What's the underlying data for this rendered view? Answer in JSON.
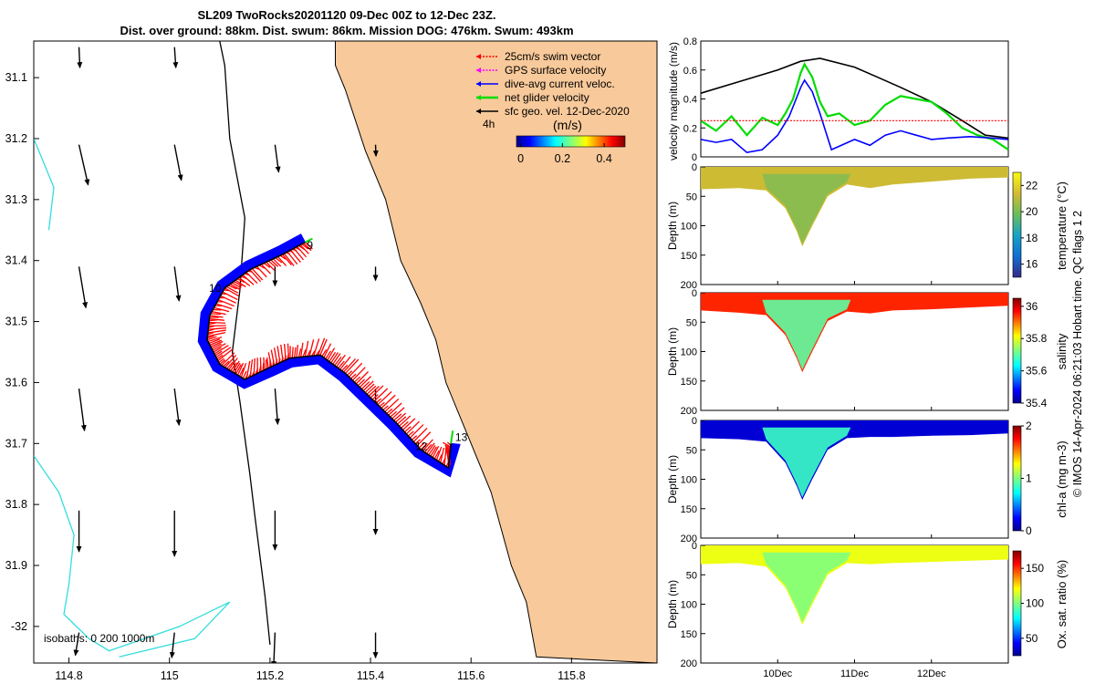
{
  "title": {
    "line1": "SL209 TwoRocks20201120 09-Dec 00Z to 12-Dec 23Z.",
    "line2": "Dist. over ground: 88km. Dist. swum: 86km. Mission DOG: 476km. Swum: 493km"
  },
  "footer": "© IMOS 14-Apr-2024 06:21:03 Hobart time. QC flags 1  2",
  "colors": {
    "land": "#f8c99a",
    "swim": "#ff0000",
    "gps": "#ff00ff",
    "current": "#0000ff",
    "net": "#00dd00",
    "isobath": "#33dddd"
  },
  "chart_data": [
    {
      "type": "map",
      "name": "glider-track-map",
      "xticks": [
        "114.8",
        "115",
        "115.2",
        "115.4",
        "115.6",
        "115.8"
      ],
      "xtick_values": [
        114.8,
        115.0,
        115.2,
        115.4,
        115.6,
        115.8
      ],
      "yticks": [
        "31.1",
        "31.2",
        "31.3",
        "31.4",
        "31.5",
        "31.6",
        "31.7",
        "31.8",
        "31.9",
        "-32"
      ],
      "ytick_values": [
        -31.1,
        -31.2,
        -31.3,
        -31.4,
        -31.5,
        -31.6,
        -31.7,
        -31.8,
        -31.9,
        -32.0
      ],
      "xlim": [
        114.73,
        115.97
      ],
      "ylim": [
        -32.06,
        -31.04
      ],
      "legend": {
        "items": [
          "25cm/s swim vector",
          "GPS surface velocity",
          "dive-avg current veloc.",
          "net glider velocity",
          "sfc geo. vel. 12-Dec-2020"
        ],
        "sub": "4h",
        "colorbar_label": "(m/s)",
        "colorbar_ticks": [
          "0",
          "0.2",
          "0.4"
        ],
        "colorbar_values": [
          0,
          0.2,
          0.4
        ],
        "colorbar_range": [
          -0.02,
          0.5
        ]
      },
      "isobath_label": "isobaths: 0   200  1000m",
      "track_labels": [
        {
          "text": "9",
          "lon": 115.27,
          "lat": -31.375
        },
        {
          "text": "10",
          "lon": 115.075,
          "lat": -31.445
        },
        {
          "text": "12",
          "lon": 115.485,
          "lat": -31.705
        },
        {
          "text": "13",
          "lon": 115.565,
          "lat": -31.69
        }
      ],
      "track": [
        [
          115.27,
          -31.37
        ],
        [
          115.225,
          -31.39
        ],
        [
          115.16,
          -31.415
        ],
        [
          115.11,
          -31.445
        ],
        [
          115.08,
          -31.49
        ],
        [
          115.075,
          -31.53
        ],
        [
          115.1,
          -31.57
        ],
        [
          115.15,
          -31.595
        ],
        [
          115.2,
          -31.575
        ],
        [
          115.24,
          -31.56
        ],
        [
          115.3,
          -31.555
        ],
        [
          115.35,
          -31.585
        ],
        [
          115.4,
          -31.625
        ],
        [
          115.45,
          -31.665
        ],
        [
          115.5,
          -31.71
        ],
        [
          115.555,
          -31.74
        ],
        [
          115.56,
          -31.7
        ]
      ],
      "geo_vectors": [
        {
          "lon": 114.82,
          "lat": -31.05,
          "u": 0.02,
          "v": -0.45
        },
        {
          "lon": 115.01,
          "lat": -31.05,
          "u": 0.03,
          "v": -0.45
        },
        {
          "lon": 114.82,
          "lat": -31.21,
          "u": 0.2,
          "v": -0.88
        },
        {
          "lon": 115.01,
          "lat": -31.21,
          "u": 0.15,
          "v": -0.78
        },
        {
          "lon": 115.21,
          "lat": -31.21,
          "u": 0.08,
          "v": -0.6
        },
        {
          "lon": 115.41,
          "lat": -31.21,
          "u": 0.01,
          "v": -0.25
        },
        {
          "lon": 114.82,
          "lat": -31.41,
          "u": 0.15,
          "v": -0.9
        },
        {
          "lon": 115.01,
          "lat": -31.41,
          "u": 0.1,
          "v": -0.75
        },
        {
          "lon": 115.21,
          "lat": -31.41,
          "u": 0.0,
          "v": -0.42
        },
        {
          "lon": 115.41,
          "lat": -31.41,
          "u": 0.0,
          "v": -0.3
        },
        {
          "lon": 114.82,
          "lat": -31.61,
          "u": 0.12,
          "v": -0.92
        },
        {
          "lon": 115.01,
          "lat": -31.61,
          "u": 0.1,
          "v": -0.8
        },
        {
          "lon": 115.21,
          "lat": -31.61,
          "u": 0.06,
          "v": -0.78
        },
        {
          "lon": 115.41,
          "lat": -31.61,
          "u": 0.0,
          "v": -0.4
        },
        {
          "lon": 114.82,
          "lat": -31.81,
          "u": 0.0,
          "v": -0.9
        },
        {
          "lon": 115.01,
          "lat": -31.81,
          "u": 0.0,
          "v": -1.0
        },
        {
          "lon": 115.21,
          "lat": -31.81,
          "u": 0.0,
          "v": -0.86
        },
        {
          "lon": 115.41,
          "lat": -31.81,
          "u": 0.0,
          "v": -0.52
        },
        {
          "lon": 114.82,
          "lat": -32.01,
          "u": -0.08,
          "v": -0.5
        },
        {
          "lon": 115.01,
          "lat": -32.01,
          "u": -0.06,
          "v": -0.55
        },
        {
          "lon": 115.21,
          "lat": -32.01,
          "u": -0.03,
          "v": -0.75
        },
        {
          "lon": 115.41,
          "lat": -32.01,
          "u": 0.0,
          "v": -0.55
        }
      ],
      "coastline": [
        [
          115.1,
          -31.04
        ],
        [
          115.11,
          -31.08
        ],
        [
          115.12,
          -31.2
        ],
        [
          115.15,
          -31.33
        ],
        [
          115.14,
          -31.45
        ],
        [
          115.125,
          -31.55
        ],
        [
          115.14,
          -31.63
        ],
        [
          115.16,
          -31.75
        ],
        [
          115.17,
          -31.82
        ],
        [
          115.19,
          -31.95
        ],
        [
          115.2,
          -32.03
        ]
      ],
      "shore": [
        [
          115.33,
          -31.04
        ],
        [
          115.33,
          -31.08
        ],
        [
          115.35,
          -31.12
        ],
        [
          115.39,
          -31.22
        ],
        [
          115.43,
          -31.3
        ],
        [
          115.46,
          -31.4
        ],
        [
          115.5,
          -31.47
        ],
        [
          115.53,
          -31.53
        ],
        [
          115.55,
          -31.6
        ],
        [
          115.6,
          -31.7
        ],
        [
          115.64,
          -31.78
        ],
        [
          115.68,
          -31.9
        ],
        [
          115.71,
          -31.96
        ],
        [
          115.73,
          -32.05
        ]
      ],
      "isobath200": [
        [
          114.73,
          -31.2
        ],
        [
          114.77,
          -31.28
        ],
        [
          114.76,
          -31.35
        ]
      ],
      "isobath1000": [
        [
          114.73,
          -31.72
        ],
        [
          114.78,
          -31.78
        ],
        [
          114.81,
          -31.85
        ],
        [
          114.8,
          -31.93
        ],
        [
          114.79,
          -31.98
        ],
        [
          114.84,
          -32.02
        ],
        [
          114.88,
          -32.04
        ],
        [
          114.95,
          -32.02
        ],
        [
          115.02,
          -32.0
        ],
        [
          115.12,
          -31.96
        ],
        [
          115.05,
          -32.02
        ],
        [
          114.9,
          -32.05
        ]
      ]
    },
    {
      "type": "line",
      "name": "velocity-magnitude",
      "ylabel": "velocity magnitude (m/s)",
      "yticks": [
        "0",
        "0.2",
        "0.4",
        "0.6",
        "0.8"
      ],
      "ylim": [
        0,
        0.8
      ],
      "series": [
        {
          "name": "sfc geo. vel.",
          "color": "#000000",
          "x": [
            9,
            9.5,
            10,
            10.3,
            10.55,
            11,
            11.3,
            11.6,
            12,
            12.4,
            12.7,
            13
          ],
          "values": [
            0.44,
            0.52,
            0.6,
            0.66,
            0.68,
            0.62,
            0.55,
            0.48,
            0.38,
            0.25,
            0.15,
            0.13
          ]
        },
        {
          "name": "net glider velocity",
          "color": "#00dd00",
          "x": [
            9,
            9.2,
            9.4,
            9.6,
            9.8,
            10,
            10.1,
            10.2,
            10.3,
            10.35,
            10.45,
            10.55,
            10.65,
            10.8,
            11,
            11.2,
            11.4,
            11.6,
            11.8,
            12,
            12.2,
            12.4,
            12.6,
            12.8,
            13
          ],
          "values": [
            0.25,
            0.18,
            0.28,
            0.15,
            0.27,
            0.22,
            0.3,
            0.4,
            0.58,
            0.64,
            0.55,
            0.38,
            0.28,
            0.3,
            0.22,
            0.25,
            0.36,
            0.42,
            0.4,
            0.38,
            0.3,
            0.2,
            0.15,
            0.12,
            0.05
          ]
        },
        {
          "name": "dive-avg current",
          "color": "#0000ff",
          "x": [
            9,
            9.2,
            9.4,
            9.6,
            9.8,
            10,
            10.15,
            10.3,
            10.35,
            10.45,
            10.55,
            10.7,
            11,
            11.2,
            11.4,
            11.6,
            11.8,
            12,
            12.2,
            12.5,
            12.8,
            13
          ],
          "values": [
            0.12,
            0.1,
            0.12,
            0.03,
            0.05,
            0.15,
            0.28,
            0.48,
            0.53,
            0.45,
            0.3,
            0.05,
            0.12,
            0.08,
            0.15,
            0.18,
            0.15,
            0.12,
            0.13,
            0.14,
            0.13,
            0.12
          ]
        },
        {
          "name": "25cm/s swim vector",
          "color": "#ff0000",
          "x": [
            9,
            13
          ],
          "values": [
            0.25,
            0.25
          ]
        }
      ]
    },
    {
      "type": "heatmap",
      "name": "temperature",
      "clabel": "temperature (°C)",
      "cticks": [
        "16",
        "18",
        "20",
        "22"
      ],
      "crange": [
        15,
        23
      ],
      "depth_ticks": [
        "0",
        "50",
        "100",
        "150",
        "200"
      ],
      "ylabel": "Depth (m)",
      "xticks": [
        "10Dec",
        "11Dec",
        "12Dec"
      ],
      "profile": [
        [
          9,
          38
        ],
        [
          9.5,
          36
        ],
        [
          9.85,
          40
        ],
        [
          10.1,
          70
        ],
        [
          10.25,
          110
        ],
        [
          10.32,
          135
        ],
        [
          10.45,
          100
        ],
        [
          10.65,
          50
        ],
        [
          10.9,
          30
        ],
        [
          11.2,
          36
        ],
        [
          11.5,
          30
        ],
        [
          12,
          25
        ],
        [
          12.5,
          20
        ],
        [
          13,
          18
        ]
      ],
      "surface_value": 21.3,
      "core_value": 20.2,
      "cmap": "parula"
    },
    {
      "type": "heatmap",
      "name": "salinity",
      "clabel": "salinity",
      "cticks": [
        "35.4",
        "35.6",
        "35.8",
        "36"
      ],
      "crange": [
        35.4,
        36.05
      ],
      "depth_ticks": [
        "0",
        "50",
        "100",
        "150",
        "200"
      ],
      "ylabel": "Depth (m)",
      "xticks": [
        "10Dec",
        "11Dec",
        "12Dec"
      ],
      "profile": [
        [
          9,
          30
        ],
        [
          9.5,
          34
        ],
        [
          9.85,
          38
        ],
        [
          10.1,
          72
        ],
        [
          10.25,
          112
        ],
        [
          10.32,
          135
        ],
        [
          10.45,
          100
        ],
        [
          10.65,
          48
        ],
        [
          10.9,
          32
        ],
        [
          11.2,
          35
        ],
        [
          11.5,
          30
        ],
        [
          12,
          28
        ],
        [
          12.5,
          25
        ],
        [
          13,
          22
        ]
      ],
      "surface_value": 35.95,
      "core_value": 35.7,
      "cmap": "jet"
    },
    {
      "type": "heatmap",
      "name": "chl-a",
      "clabel": "chl-a (mg m-3)",
      "cticks": [
        "0",
        "1",
        "2"
      ],
      "crange": [
        0,
        2
      ],
      "depth_ticks": [
        "0",
        "50",
        "100",
        "150",
        "200"
      ],
      "ylabel": "Depth (m)",
      "xticks": [
        "10Dec",
        "11Dec",
        "12Dec"
      ],
      "profile": [
        [
          9,
          30
        ],
        [
          9.5,
          32
        ],
        [
          9.85,
          36
        ],
        [
          10.1,
          72
        ],
        [
          10.25,
          112
        ],
        [
          10.32,
          135
        ],
        [
          10.45,
          100
        ],
        [
          10.65,
          50
        ],
        [
          10.9,
          30
        ],
        [
          11.2,
          28
        ],
        [
          11.5,
          28
        ],
        [
          12,
          26
        ],
        [
          12.5,
          25
        ],
        [
          13,
          22
        ]
      ],
      "surface_value": 0.15,
      "core_value": 0.85,
      "cmap": "jet"
    },
    {
      "type": "heatmap",
      "name": "oxygen",
      "clabel": "Ox. sat. ratio (%)",
      "cticks": [
        "50",
        "100",
        "150"
      ],
      "crange": [
        25,
        175
      ],
      "depth_ticks": [
        "0",
        "50",
        "100",
        "150",
        "200"
      ],
      "ylabel": "Depth (m)",
      "xticks": [
        "10Dec",
        "11Dec",
        "12Dec"
      ],
      "profile": [
        [
          9,
          32
        ],
        [
          9.5,
          30
        ],
        [
          9.85,
          36
        ],
        [
          10.1,
          72
        ],
        [
          10.25,
          112
        ],
        [
          10.32,
          135
        ],
        [
          10.45,
          100
        ],
        [
          10.65,
          50
        ],
        [
          10.9,
          30
        ],
        [
          11.2,
          32
        ],
        [
          11.5,
          30
        ],
        [
          12,
          28
        ],
        [
          12.5,
          26
        ],
        [
          13,
          24
        ]
      ],
      "surface_value": 118,
      "core_value": 100,
      "cmap": "jet"
    }
  ]
}
